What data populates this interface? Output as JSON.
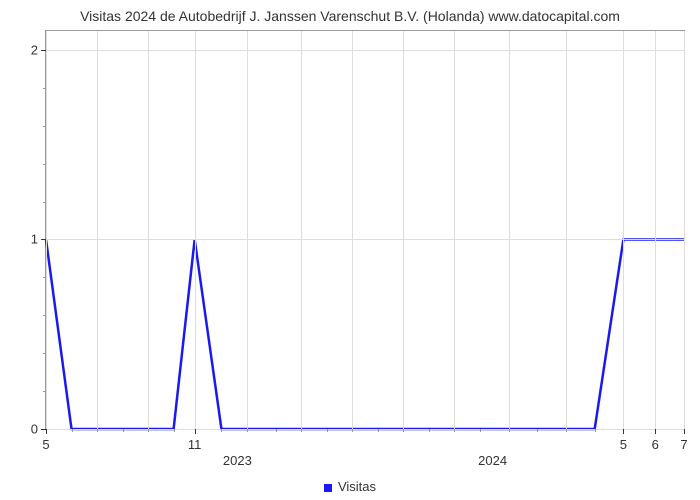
{
  "chart": {
    "type": "line",
    "title": "Visitas 2024 de Autobedrijf J. Janssen Varenschut B.V. (Holanda) www.datocapital.com",
    "title_fontsize": 14,
    "background_color": "#ffffff",
    "grid_color": "#dddddd",
    "axis_color": "#999999",
    "text_color": "#333333",
    "line_color": "#1a1aee",
    "line_width": 2.5,
    "y_axis": {
      "min": 0,
      "max": 2.1,
      "major_ticks": [
        0,
        1,
        2
      ],
      "minor_tick_count_between": 4
    },
    "x_axis": {
      "major_ticks": [
        {
          "pos": 0.0,
          "label": "5"
        },
        {
          "pos": 0.233,
          "label": "11"
        },
        {
          "pos": 0.905,
          "label": "5"
        },
        {
          "pos": 0.955,
          "label": "6"
        },
        {
          "pos": 1.0,
          "label": "7"
        }
      ],
      "minor_tick_positions": [
        0.04,
        0.08,
        0.12,
        0.16,
        0.2,
        0.275,
        0.315,
        0.36,
        0.4,
        0.44,
        0.48,
        0.52,
        0.56,
        0.6,
        0.64,
        0.68,
        0.725,
        0.77,
        0.815,
        0.86
      ],
      "year_labels": [
        {
          "pos": 0.3,
          "label": "2023"
        },
        {
          "pos": 0.7,
          "label": "2024"
        }
      ],
      "grid_positions": [
        0.0,
        0.08,
        0.16,
        0.233,
        0.315,
        0.4,
        0.48,
        0.56,
        0.64,
        0.725,
        0.815,
        0.905,
        0.955,
        1.0
      ]
    },
    "data_points": [
      {
        "x": 0.0,
        "y": 1.0
      },
      {
        "x": 0.04,
        "y": 0.0
      },
      {
        "x": 0.2,
        "y": 0.0
      },
      {
        "x": 0.233,
        "y": 1.0
      },
      {
        "x": 0.275,
        "y": 0.0
      },
      {
        "x": 0.86,
        "y": 0.0
      },
      {
        "x": 0.905,
        "y": 1.0
      },
      {
        "x": 1.0,
        "y": 1.0
      }
    ],
    "legend": {
      "label": "Visitas",
      "marker_color": "#1a1aee"
    }
  }
}
